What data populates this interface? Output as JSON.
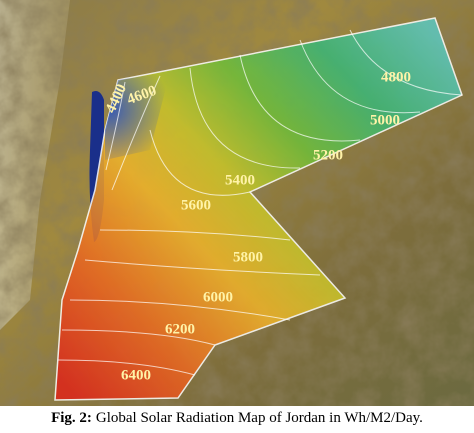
{
  "map": {
    "contour_labels": [
      4400,
      4600,
      4800,
      5000,
      5200,
      5400,
      5600,
      5800,
      6000,
      6200,
      6400
    ]
  },
  "caption": {
    "figure": "Fig. 2:",
    "text": "Global Solar Radiation Map of Jordan in Wh/M2/Day."
  }
}
